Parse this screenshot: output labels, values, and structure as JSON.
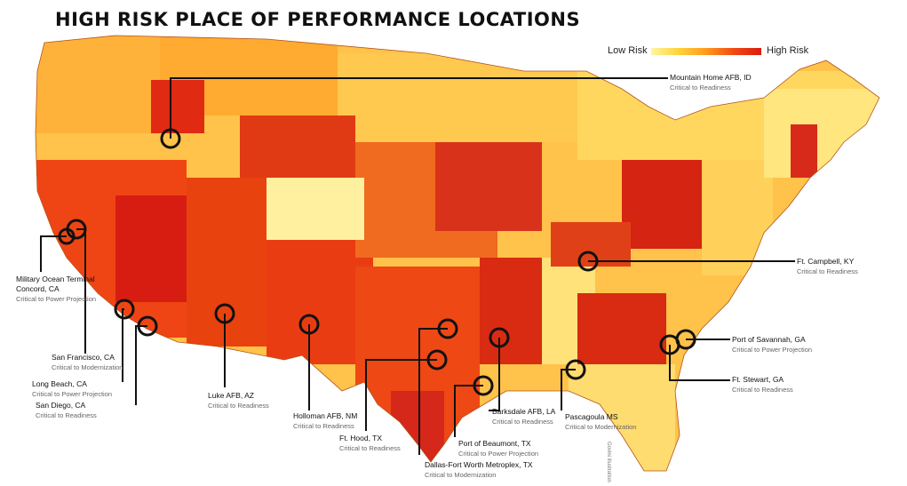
{
  "title": "HIGH RISK PLACE OF PERFORMANCE LOCATIONS",
  "legend": {
    "low": "Low Risk",
    "high": "High Risk",
    "colors": [
      "#fff6a0",
      "#ffd23a",
      "#ff9a1e",
      "#f04a12",
      "#d91d10"
    ]
  },
  "credit": "Govini illustration",
  "locations": [
    {
      "name": "Mountain Home AFB, ID",
      "status": "Critical to Readiness"
    },
    {
      "name": "Ft. Campbell, KY",
      "status": "Critical to Readiness"
    },
    {
      "name": "Port of Savannah, GA",
      "status": "Critical to Power Projection"
    },
    {
      "name": "Ft. Stewart, GA",
      "status": "Critical to Readiness"
    },
    {
      "name": "Pascagoula MS",
      "status": "Critical to Modernization"
    },
    {
      "name": "Barksdale AFB, LA",
      "status": "Critical to Readiness"
    },
    {
      "name": "Port of Beaumont, TX",
      "status": "Critical to Power Projection"
    },
    {
      "name": "Dallas-Fort Worth Metroplex, TX",
      "status": "Critical to Modernization"
    },
    {
      "name": "Ft. Hood, TX",
      "status": "Critical to Readiness"
    },
    {
      "name": "Holloman AFB, NM",
      "status": "Critical to Readiness"
    },
    {
      "name": "Luke AFB, AZ",
      "status": "Critical to Readiness"
    },
    {
      "name": "San Diego, CA",
      "status": "Critical to Readiness"
    },
    {
      "name": "Long Beach, CA",
      "status": "Critical to Power Projection"
    },
    {
      "name": "San Francisco, CA",
      "status": "Critical to Modernization"
    },
    {
      "name": "Military Ocean Terminal Concord, CA",
      "status": "Critical to Power Projection"
    }
  ]
}
